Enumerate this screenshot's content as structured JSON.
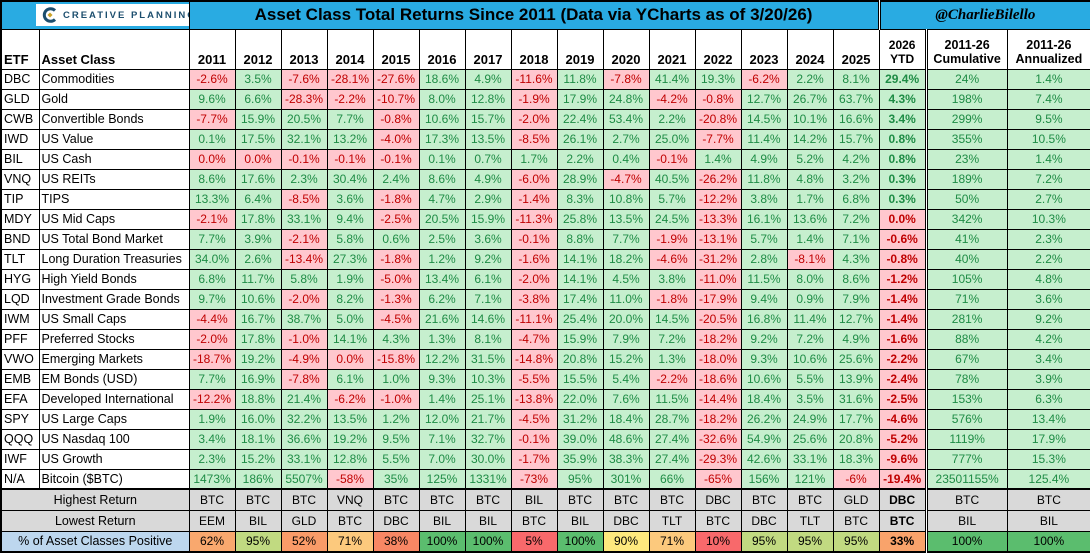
{
  "header": {
    "logo_text": "CREATIVE PLANNING",
    "title": "Asset Class Total Returns Since 2011 (Data via YCharts as of 3/20/26)",
    "handle": "@CharlieBilello"
  },
  "table_headers": {
    "etf": "ETF",
    "asset_class": "Asset Class",
    "ytd_line1": "2026",
    "ytd_line2": "YTD",
    "cumulative_line1": "2011-26",
    "cumulative_line2": "Cumulative",
    "annualized_line1": "2011-26",
    "annualized_line2": "Annualized"
  },
  "chart_data": {
    "type": "table",
    "title": "Asset Class Total Returns Since 2011 (Data via YCharts as of 3/20/26)",
    "source_handle": "@CharlieBilello",
    "years": [
      "2011",
      "2012",
      "2013",
      "2014",
      "2015",
      "2016",
      "2017",
      "2018",
      "2019",
      "2020",
      "2021",
      "2022",
      "2023",
      "2024",
      "2025"
    ],
    "extra_columns": [
      "2026 YTD",
      "2011-26 Cumulative",
      "2011-26 Annualized"
    ],
    "rows": [
      {
        "etf": "DBC",
        "name": "Commodities",
        "values": [
          "-2.6%",
          "3.5%",
          "-7.6%",
          "-28.1%",
          "-27.6%",
          "18.6%",
          "4.9%",
          "-11.6%",
          "11.8%",
          "-7.8%",
          "41.4%",
          "19.3%",
          "-6.2%",
          "2.2%",
          "8.1%"
        ],
        "ytd": "29.4%",
        "cumulative": "24%",
        "annualized": "1.4%"
      },
      {
        "etf": "GLD",
        "name": "Gold",
        "values": [
          "9.6%",
          "6.6%",
          "-28.3%",
          "-2.2%",
          "-10.7%",
          "8.0%",
          "12.8%",
          "-1.9%",
          "17.9%",
          "24.8%",
          "-4.2%",
          "-0.8%",
          "12.7%",
          "26.7%",
          "63.7%"
        ],
        "ytd": "4.3%",
        "cumulative": "198%",
        "annualized": "7.4%"
      },
      {
        "etf": "CWB",
        "name": "Convertible Bonds",
        "values": [
          "-7.7%",
          "15.9%",
          "20.5%",
          "7.7%",
          "-0.8%",
          "10.6%",
          "15.7%",
          "-2.0%",
          "22.4%",
          "53.4%",
          "2.2%",
          "-20.8%",
          "14.5%",
          "10.1%",
          "16.6%"
        ],
        "ytd": "3.4%",
        "cumulative": "299%",
        "annualized": "9.5%"
      },
      {
        "etf": "IWD",
        "name": "US Value",
        "values": [
          "0.1%",
          "17.5%",
          "32.1%",
          "13.2%",
          "-4.0%",
          "17.3%",
          "13.5%",
          "-8.5%",
          "26.1%",
          "2.7%",
          "25.0%",
          "-7.7%",
          "11.4%",
          "14.2%",
          "15.7%"
        ],
        "ytd": "0.8%",
        "cumulative": "355%",
        "annualized": "10.5%"
      },
      {
        "etf": "BIL",
        "name": "US Cash",
        "values": [
          "0.0%",
          "0.0%",
          "-0.1%",
          "-0.1%",
          "-0.1%",
          "0.1%",
          "0.7%",
          "1.7%",
          "2.2%",
          "0.4%",
          "-0.1%",
          "1.4%",
          "4.9%",
          "5.2%",
          "4.2%"
        ],
        "ytd": "0.8%",
        "cumulative": "23%",
        "annualized": "1.4%"
      },
      {
        "etf": "VNQ",
        "name": "US REITs",
        "values": [
          "8.6%",
          "17.6%",
          "2.3%",
          "30.4%",
          "2.4%",
          "8.6%",
          "4.9%",
          "-6.0%",
          "28.9%",
          "-4.7%",
          "40.5%",
          "-26.2%",
          "11.8%",
          "4.8%",
          "3.2%"
        ],
        "ytd": "0.3%",
        "cumulative": "189%",
        "annualized": "7.2%"
      },
      {
        "etf": "TIP",
        "name": "TIPS",
        "values": [
          "13.3%",
          "6.4%",
          "-8.5%",
          "3.6%",
          "-1.8%",
          "4.7%",
          "2.9%",
          "-1.4%",
          "8.3%",
          "10.8%",
          "5.7%",
          "-12.2%",
          "3.8%",
          "1.7%",
          "6.8%"
        ],
        "ytd": "0.3%",
        "cumulative": "50%",
        "annualized": "2.7%"
      },
      {
        "etf": "MDY",
        "name": "US Mid Caps",
        "values": [
          "-2.1%",
          "17.8%",
          "33.1%",
          "9.4%",
          "-2.5%",
          "20.5%",
          "15.9%",
          "-11.3%",
          "25.8%",
          "13.5%",
          "24.5%",
          "-13.3%",
          "16.1%",
          "13.6%",
          "7.2%"
        ],
        "ytd": "0.0%",
        "cumulative": "342%",
        "annualized": "10.3%"
      },
      {
        "etf": "BND",
        "name": "US Total Bond Market",
        "values": [
          "7.7%",
          "3.9%",
          "-2.1%",
          "5.8%",
          "0.6%",
          "2.5%",
          "3.6%",
          "-0.1%",
          "8.8%",
          "7.7%",
          "-1.9%",
          "-13.1%",
          "5.7%",
          "1.4%",
          "7.1%"
        ],
        "ytd": "-0.6%",
        "cumulative": "41%",
        "annualized": "2.3%"
      },
      {
        "etf": "TLT",
        "name": "Long Duration Treasuries",
        "values": [
          "34.0%",
          "2.6%",
          "-13.4%",
          "27.3%",
          "-1.8%",
          "1.2%",
          "9.2%",
          "-1.6%",
          "14.1%",
          "18.2%",
          "-4.6%",
          "-31.2%",
          "2.8%",
          "-8.1%",
          "4.3%"
        ],
        "ytd": "-0.8%",
        "cumulative": "40%",
        "annualized": "2.2%"
      },
      {
        "etf": "HYG",
        "name": "High Yield Bonds",
        "values": [
          "6.8%",
          "11.7%",
          "5.8%",
          "1.9%",
          "-5.0%",
          "13.4%",
          "6.1%",
          "-2.0%",
          "14.1%",
          "4.5%",
          "3.8%",
          "-11.0%",
          "11.5%",
          "8.0%",
          "8.6%"
        ],
        "ytd": "-1.2%",
        "cumulative": "105%",
        "annualized": "4.8%"
      },
      {
        "etf": "LQD",
        "name": "Investment Grade Bonds",
        "values": [
          "9.7%",
          "10.6%",
          "-2.0%",
          "8.2%",
          "-1.3%",
          "6.2%",
          "7.1%",
          "-3.8%",
          "17.4%",
          "11.0%",
          "-1.8%",
          "-17.9%",
          "9.4%",
          "0.9%",
          "7.9%"
        ],
        "ytd": "-1.4%",
        "cumulative": "71%",
        "annualized": "3.6%"
      },
      {
        "etf": "IWM",
        "name": "US Small Caps",
        "values": [
          "-4.4%",
          "16.7%",
          "38.7%",
          "5.0%",
          "-4.5%",
          "21.6%",
          "14.6%",
          "-11.1%",
          "25.4%",
          "20.0%",
          "14.5%",
          "-20.5%",
          "16.8%",
          "11.4%",
          "12.7%"
        ],
        "ytd": "-1.4%",
        "cumulative": "281%",
        "annualized": "9.2%"
      },
      {
        "etf": "PFF",
        "name": "Preferred Stocks",
        "values": [
          "-2.0%",
          "17.8%",
          "-1.0%",
          "14.1%",
          "4.3%",
          "1.3%",
          "8.1%",
          "-4.7%",
          "15.9%",
          "7.9%",
          "7.2%",
          "-18.2%",
          "9.2%",
          "7.2%",
          "4.9%"
        ],
        "ytd": "-1.6%",
        "cumulative": "88%",
        "annualized": "4.2%"
      },
      {
        "etf": "VWO",
        "name": "Emerging Markets",
        "values": [
          "-18.7%",
          "19.2%",
          "-4.9%",
          "0.0%",
          "-15.8%",
          "12.2%",
          "31.5%",
          "-14.8%",
          "20.8%",
          "15.2%",
          "1.3%",
          "-18.0%",
          "9.3%",
          "10.6%",
          "25.6%"
        ],
        "ytd": "-2.2%",
        "cumulative": "67%",
        "annualized": "3.4%"
      },
      {
        "etf": "EMB",
        "name": "EM Bonds (USD)",
        "values": [
          "7.7%",
          "16.9%",
          "-7.8%",
          "6.1%",
          "1.0%",
          "9.3%",
          "10.3%",
          "-5.5%",
          "15.5%",
          "5.4%",
          "-2.2%",
          "-18.6%",
          "10.6%",
          "5.5%",
          "13.9%"
        ],
        "ytd": "-2.4%",
        "cumulative": "78%",
        "annualized": "3.9%"
      },
      {
        "etf": "EFA",
        "name": "Developed International",
        "values": [
          "-12.2%",
          "18.8%",
          "21.4%",
          "-6.2%",
          "-1.0%",
          "1.4%",
          "25.1%",
          "-13.8%",
          "22.0%",
          "7.6%",
          "11.5%",
          "-14.4%",
          "18.4%",
          "3.5%",
          "31.6%"
        ],
        "ytd": "-2.5%",
        "cumulative": "153%",
        "annualized": "6.3%"
      },
      {
        "etf": "SPY",
        "name": "US Large Caps",
        "values": [
          "1.9%",
          "16.0%",
          "32.2%",
          "13.5%",
          "1.2%",
          "12.0%",
          "21.7%",
          "-4.5%",
          "31.2%",
          "18.4%",
          "28.7%",
          "-18.2%",
          "26.2%",
          "24.9%",
          "17.7%"
        ],
        "ytd": "-4.6%",
        "cumulative": "576%",
        "annualized": "13.4%"
      },
      {
        "etf": "QQQ",
        "name": "US Nasdaq 100",
        "values": [
          "3.4%",
          "18.1%",
          "36.6%",
          "19.2%",
          "9.5%",
          "7.1%",
          "32.7%",
          "-0.1%",
          "39.0%",
          "48.6%",
          "27.4%",
          "-32.6%",
          "54.9%",
          "25.6%",
          "20.8%"
        ],
        "ytd": "-5.2%",
        "cumulative": "1119%",
        "annualized": "17.9%"
      },
      {
        "etf": "IWF",
        "name": "US Growth",
        "values": [
          "2.3%",
          "15.2%",
          "33.1%",
          "12.8%",
          "5.5%",
          "7.0%",
          "30.0%",
          "-1.7%",
          "35.9%",
          "38.3%",
          "27.4%",
          "-29.3%",
          "42.6%",
          "33.1%",
          "18.3%"
        ],
        "ytd": "-9.6%",
        "cumulative": "777%",
        "annualized": "15.3%"
      },
      {
        "etf": "N/A",
        "name": "Bitcoin ($BTC)",
        "values": [
          "1473%",
          "186%",
          "5507%",
          "-58%",
          "35%",
          "125%",
          "1331%",
          "-73%",
          "95%",
          "301%",
          "66%",
          "-65%",
          "156%",
          "121%",
          "-6%"
        ],
        "ytd": "-19.4%",
        "cumulative": "23501155%",
        "annualized": "125.4%"
      }
    ],
    "summary": {
      "highest_label": "Highest Return",
      "highest": [
        "BTC",
        "BTC",
        "BTC",
        "VNQ",
        "BTC",
        "BTC",
        "BTC",
        "BIL",
        "BTC",
        "BTC",
        "BTC",
        "DBC",
        "BTC",
        "BTC",
        "GLD",
        "DBC",
        "BTC",
        "BTC"
      ],
      "lowest_label": "Lowest Return",
      "lowest": [
        "EEM",
        "BIL",
        "GLD",
        "BTC",
        "DBC",
        "BIL",
        "BIL",
        "BTC",
        "BIL",
        "DBC",
        "TLT",
        "BTC",
        "DBC",
        "TLT",
        "BTC",
        "BTC",
        "BIL",
        "BIL"
      ],
      "pct_positive_label": "% of Asset Classes Positive",
      "pct_positive": [
        "62%",
        "95%",
        "52%",
        "71%",
        "38%",
        "100%",
        "100%",
        "5%",
        "100%",
        "90%",
        "71%",
        "10%",
        "95%",
        "95%",
        "95%",
        "33%",
        "100%",
        "100%"
      ],
      "pct_colors": [
        "#F9A86E",
        "#C1DA81",
        "#F99B68",
        "#FCC97D",
        "#F88764",
        "#5BBD6E",
        "#5BBD6E",
        "#F8696B",
        "#5BBD6E",
        "#FEE97E",
        "#FCC97D",
        "#F8696B",
        "#C1DA81",
        "#C1DA81",
        "#C1DA81",
        "#F9A36B",
        "#5BBD6E",
        "#5BBD6E"
      ]
    },
    "colors": {
      "positive_bg": "#C6EFCE",
      "positive_text": "#1E8C45",
      "negative_bg": "#FFC7CE",
      "negative_text": "#C00000",
      "header_cyan": "#29ABE2",
      "ytd_header_bg": "#A6A6A6",
      "summary_gray": "#D9D9D9",
      "pct_label_blue": "#BDD7EE",
      "logo_navy": "#1C4E6E",
      "logo_gold": "#C9A227"
    }
  }
}
